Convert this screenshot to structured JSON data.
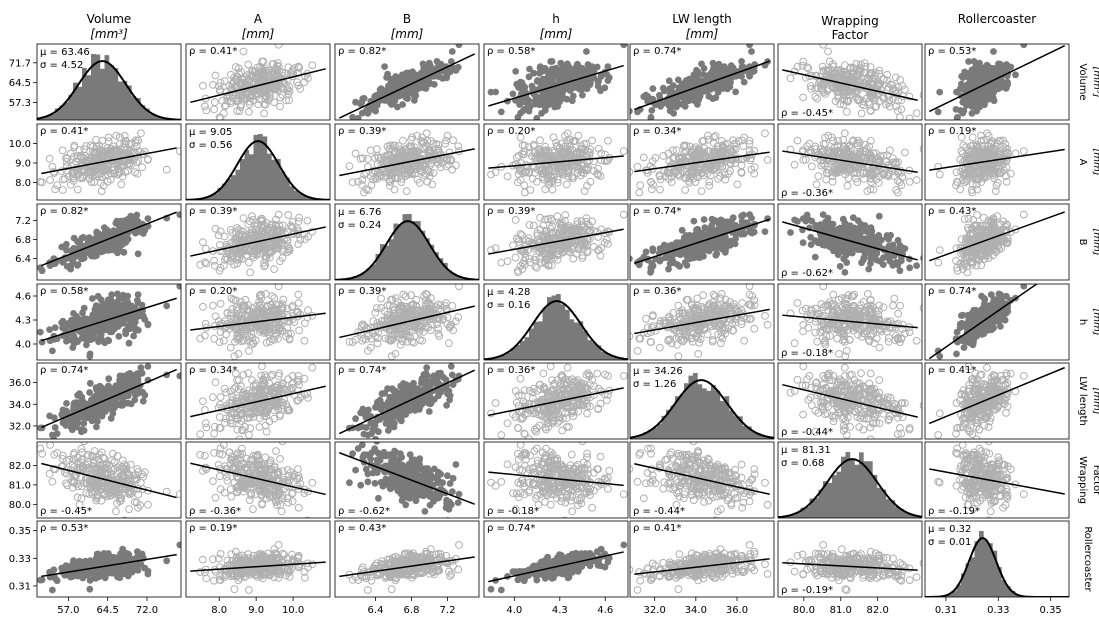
{
  "chart_data": {
    "type": "scatter",
    "title": "",
    "layout": "pair-plot-matrix",
    "variables": [
      {
        "key": "volume",
        "top_label": "Volume",
        "unit": "[mm³]",
        "side_label": "Volume",
        "ticks": [
          "57.0",
          "64.5",
          "72.0"
        ],
        "y_ticks_diag": [
          "57.3",
          "64.5",
          "71.7"
        ],
        "min": 51.0,
        "max": 78.5,
        "mu": "63.46",
        "sigma": "4.52",
        "mean": 63.46,
        "sd": 4.52
      },
      {
        "key": "A",
        "top_label": "A",
        "unit": "[mm]",
        "side_label": "A",
        "ticks": [
          "8.0",
          "9.0",
          "10.0"
        ],
        "min": 7.1,
        "max": 11.0,
        "mu": "9.05",
        "sigma": "0.56",
        "mean": 9.05,
        "sd": 0.56
      },
      {
        "key": "B",
        "top_label": "B",
        "unit": "[mm]",
        "side_label": "B",
        "ticks": [
          "6.4",
          "6.8",
          "7.2"
        ],
        "min": 5.95,
        "max": 7.55,
        "mu": "6.76",
        "sigma": "0.24",
        "mean": 6.76,
        "sd": 0.24
      },
      {
        "key": "h",
        "top_label": "h",
        "unit": "[mm]",
        "side_label": "h",
        "ticks": [
          "4.0",
          "4.3",
          "4.6"
        ],
        "min": 3.8,
        "max": 4.75,
        "mu": "4.28",
        "sigma": "0.16",
        "mean": 4.28,
        "sd": 0.16
      },
      {
        "key": "lw",
        "top_label": "LW length",
        "unit": "[mm]",
        "side_label": "LW length",
        "ticks": [
          "32.0",
          "34.0",
          "36.0"
        ],
        "min": 30.8,
        "max": 37.8,
        "mu": "34.26",
        "sigma": "1.26",
        "mean": 34.26,
        "sd": 1.26
      },
      {
        "key": "wf",
        "top_label": "Wrapping",
        "top_label_2": "Factor",
        "unit": "",
        "side_label": "Wrapping",
        "side_label_2": "Factor",
        "ticks": [
          "80.0",
          "81.0",
          "82.0"
        ],
        "min": 79.3,
        "max": 83.2,
        "mu": "81.31",
        "sigma": "0.68",
        "mean": 81.31,
        "sd": 0.68
      },
      {
        "key": "rc",
        "top_label": "Rollercoaster",
        "unit": "",
        "side_label": "Rollercoaster",
        "ticks": [
          "0.31",
          "0.33",
          "0.35"
        ],
        "min": 0.302,
        "max": 0.357,
        "mu": "0.32",
        "sigma": "0.01",
        "mean": 0.324,
        "sd": 0.0052
      }
    ],
    "correlation_labels": [
      [
        "",
        "0.41*",
        "0.82*",
        "0.58*",
        "0.74*",
        "-0.45*",
        "0.53*"
      ],
      [
        "0.41*",
        "",
        "0.39*",
        "0.20*",
        "0.34*",
        "-0.36*",
        "0.19*"
      ],
      [
        "0.82*",
        "0.39*",
        "",
        "0.39*",
        "0.74*",
        "-0.62*",
        "0.43*"
      ],
      [
        "0.58*",
        "0.20*",
        "0.39*",
        "",
        "0.36*",
        "-0.18*",
        "0.74*"
      ],
      [
        "0.74*",
        "0.34*",
        "0.74*",
        "0.36*",
        "",
        "-0.44*",
        "0.41*"
      ],
      [
        "-0.45*",
        "-0.36*",
        "-0.62*",
        "-0.18*",
        "-0.44*",
        "",
        "-0.19*"
      ],
      [
        "0.53*",
        "0.19*",
        "0.43*",
        "0.74*",
        "0.41*",
        "-0.19*",
        ""
      ]
    ],
    "correlations": [
      [
        1,
        0.41,
        0.82,
        0.58,
        0.74,
        -0.45,
        0.53
      ],
      [
        0.41,
        1,
        0.39,
        0.2,
        0.34,
        -0.36,
        0.19
      ],
      [
        0.82,
        0.39,
        1,
        0.39,
        0.74,
        -0.62,
        0.43
      ],
      [
        0.58,
        0.2,
        0.39,
        1,
        0.36,
        -0.18,
        0.74
      ],
      [
        0.74,
        0.34,
        0.74,
        0.36,
        1,
        -0.44,
        0.41
      ],
      [
        -0.45,
        -0.36,
        -0.62,
        -0.18,
        -0.44,
        1,
        -0.19
      ],
      [
        0.53,
        0.19,
        0.43,
        0.74,
        0.41,
        -0.19,
        1
      ]
    ],
    "strong_correlation_threshold": 0.5,
    "diagonal": "histogram with fitted normal curve",
    "rho_symbol": "ρ = ",
    "mu_symbol": "μ = ",
    "sigma_symbol": "σ = ",
    "colors": {
      "strong": "#7a7a7a",
      "weak": "#b0b0b0",
      "hist": "#7a7a7a",
      "line": "#000000"
    }
  }
}
